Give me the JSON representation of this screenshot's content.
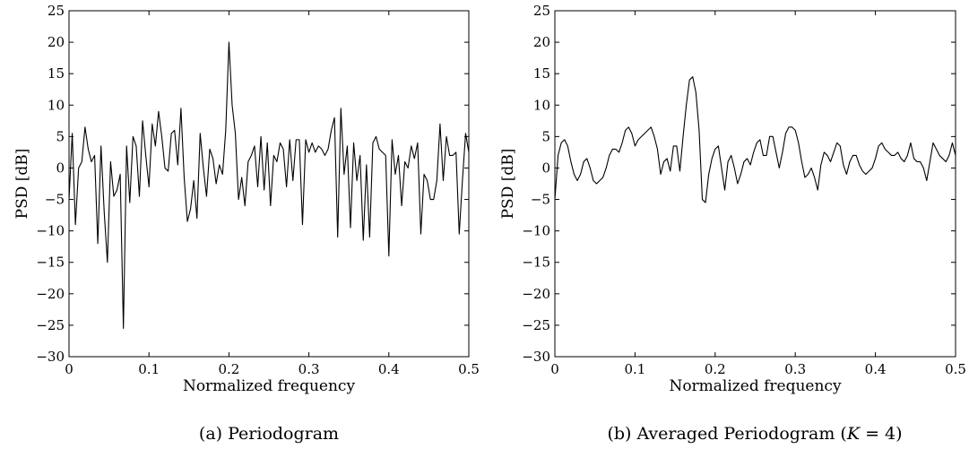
{
  "chart_data": [
    {
      "type": "line",
      "caption": "(a) Periodogram",
      "xlabel": "Normalized frequency",
      "ylabel": "PSD [dB]",
      "xlim": [
        0,
        0.5
      ],
      "ylim": [
        -30,
        25
      ],
      "xticks": [
        0,
        0.1,
        0.2,
        0.3,
        0.4,
        0.5
      ],
      "xtick_labels": [
        "0",
        "0.1",
        "0.2",
        "0.3",
        "0.4",
        "0.5"
      ],
      "yticks": [
        25,
        20,
        15,
        10,
        5,
        0,
        -5,
        -10,
        -15,
        -20,
        -25,
        -30
      ],
      "ytick_labels": [
        "25",
        "20",
        "15",
        "10",
        "5",
        "0",
        "−5",
        "−10",
        "−15",
        "−20",
        "−25",
        "−30"
      ],
      "grid": false,
      "series": [
        {
          "x": [
            0,
            0.004,
            0.008,
            0.012,
            0.016,
            0.02,
            0.024,
            0.028,
            0.032,
            0.036,
            0.04,
            0.044,
            0.048,
            0.052,
            0.056,
            0.06,
            0.064,
            0.068,
            0.072,
            0.076,
            0.08,
            0.084,
            0.088,
            0.092,
            0.096,
            0.1,
            0.104,
            0.108,
            0.112,
            0.116,
            0.12,
            0.124,
            0.128,
            0.132,
            0.136,
            0.14,
            0.144,
            0.148,
            0.152,
            0.156,
            0.16,
            0.164,
            0.168,
            0.172,
            0.176,
            0.18,
            0.184,
            0.188,
            0.192,
            0.196,
            0.2,
            0.204,
            0.208,
            0.212,
            0.216,
            0.22,
            0.224,
            0.228,
            0.232,
            0.236,
            0.24,
            0.244,
            0.248,
            0.252,
            0.256,
            0.26,
            0.264,
            0.268,
            0.272,
            0.276,
            0.28,
            0.284,
            0.288,
            0.292,
            0.296,
            0.3,
            0.304,
            0.308,
            0.312,
            0.316,
            0.32,
            0.324,
            0.328,
            0.332,
            0.336,
            0.34,
            0.344,
            0.348,
            0.352,
            0.356,
            0.36,
            0.364,
            0.368,
            0.372,
            0.376,
            0.38,
            0.384,
            0.388,
            0.392,
            0.396,
            0.4,
            0.404,
            0.408,
            0.412,
            0.416,
            0.42,
            0.424,
            0.428,
            0.432,
            0.436,
            0.44,
            0.444,
            0.448,
            0.452,
            0.456,
            0.46,
            0.464,
            0.468,
            0.472,
            0.476,
            0.48,
            0.484,
            0.488,
            0.492,
            0.496,
            0.5
          ],
          "values": [
            -5,
            5.5,
            -9,
            0,
            1,
            6.5,
            3,
            1,
            2,
            -12,
            3.5,
            -7,
            -15,
            1,
            -4.5,
            -3.5,
            -1,
            -25.5,
            3.5,
            -5.5,
            5,
            3.5,
            -4.5,
            7.5,
            2,
            -3,
            7,
            3.5,
            9,
            5,
            0,
            -0.5,
            5.5,
            6,
            0.5,
            9.5,
            -1.5,
            -8.5,
            -6.5,
            -2,
            -8,
            5.5,
            0,
            -4.5,
            3,
            1.5,
            -2.5,
            0.5,
            -1,
            6,
            20,
            10,
            5.5,
            -5,
            -1.5,
            -6,
            1,
            2,
            3.5,
            -3,
            5,
            -3.5,
            4,
            -6,
            2,
            1,
            4,
            3,
            -3,
            4.5,
            -2,
            4.5,
            4.5,
            -9,
            4.5,
            2.5,
            4,
            2.5,
            3.5,
            3,
            2,
            3,
            6,
            8,
            -11,
            9.5,
            -1,
            3.5,
            -9.5,
            4,
            -2,
            2,
            -11.5,
            0.5,
            -11,
            4,
            5,
            3,
            2.5,
            2,
            -14,
            4.5,
            -1,
            2,
            -6,
            1,
            0,
            3.5,
            1.5,
            4,
            -10.5,
            -1,
            -2,
            -5,
            -5,
            -2,
            7,
            -2,
            5,
            2,
            2,
            2.5,
            -10.5,
            -2,
            5.5,
            2.5
          ]
        }
      ]
    },
    {
      "type": "line",
      "caption": "(b) Averaged Periodogram (K = 4)",
      "caption_main": "(b) Averaged Periodogram (",
      "caption_var": "K",
      "caption_rest": " = 4)",
      "xlabel": "Normalized frequency",
      "ylabel": "PSD [dB]",
      "xlim": [
        0,
        0.5
      ],
      "ylim": [
        -30,
        25
      ],
      "xticks": [
        0,
        0.1,
        0.2,
        0.3,
        0.4,
        0.5
      ],
      "xtick_labels": [
        "0",
        "0.1",
        "0.2",
        "0.3",
        "0.4",
        "0.5"
      ],
      "yticks": [
        25,
        20,
        15,
        10,
        5,
        0,
        -5,
        -10,
        -15,
        -20,
        -25,
        -30
      ],
      "ytick_labels": [
        "25",
        "20",
        "15",
        "10",
        "5",
        "0",
        "−5",
        "−10",
        "−15",
        "−20",
        "−25",
        "−30"
      ],
      "grid": false,
      "series": [
        {
          "x": [
            0,
            0.004,
            0.008,
            0.012,
            0.016,
            0.02,
            0.024,
            0.028,
            0.032,
            0.036,
            0.04,
            0.044,
            0.048,
            0.052,
            0.056,
            0.06,
            0.064,
            0.068,
            0.072,
            0.076,
            0.08,
            0.084,
            0.088,
            0.092,
            0.096,
            0.1,
            0.104,
            0.108,
            0.112,
            0.116,
            0.12,
            0.124,
            0.128,
            0.132,
            0.136,
            0.14,
            0.144,
            0.148,
            0.152,
            0.156,
            0.16,
            0.164,
            0.168,
            0.172,
            0.176,
            0.18,
            0.184,
            0.188,
            0.192,
            0.196,
            0.2,
            0.204,
            0.208,
            0.212,
            0.216,
            0.22,
            0.224,
            0.228,
            0.232,
            0.236,
            0.24,
            0.244,
            0.248,
            0.252,
            0.256,
            0.26,
            0.264,
            0.268,
            0.272,
            0.276,
            0.28,
            0.284,
            0.288,
            0.292,
            0.296,
            0.3,
            0.304,
            0.308,
            0.312,
            0.316,
            0.32,
            0.324,
            0.328,
            0.332,
            0.336,
            0.34,
            0.344,
            0.348,
            0.352,
            0.356,
            0.36,
            0.364,
            0.368,
            0.372,
            0.376,
            0.38,
            0.384,
            0.388,
            0.392,
            0.396,
            0.4,
            0.404,
            0.408,
            0.412,
            0.416,
            0.42,
            0.424,
            0.428,
            0.432,
            0.436,
            0.44,
            0.444,
            0.448,
            0.452,
            0.456,
            0.46,
            0.464,
            0.468,
            0.472,
            0.476,
            0.48,
            0.484,
            0.488,
            0.492,
            0.496,
            0.5
          ],
          "values": [
            -5,
            2,
            4,
            4.5,
            3.5,
            1,
            -1,
            -2,
            -1,
            1,
            1.5,
            0,
            -2,
            -2.5,
            -2,
            -1.5,
            0,
            2,
            3,
            3,
            2.5,
            4,
            6,
            6.5,
            5.5,
            3.5,
            4.5,
            5,
            5.5,
            6,
            6.5,
            5,
            3,
            -1,
            1,
            1.5,
            -0.5,
            3.5,
            3.5,
            -0.5,
            5,
            10,
            14,
            14.5,
            12,
            6,
            -5,
            -5.5,
            -1,
            1.5,
            3,
            3.5,
            0,
            -3.5,
            1,
            2,
            0,
            -2.5,
            -1,
            1,
            1.5,
            0.5,
            2.5,
            4,
            4.5,
            2,
            2,
            5,
            5,
            2.5,
            0,
            2.5,
            5.5,
            6.5,
            6.5,
            6,
            4,
            1,
            -1.5,
            -1,
            0,
            -1.5,
            -3.5,
            0.5,
            2.5,
            2,
            1,
            2.5,
            4,
            3.5,
            0.5,
            -1,
            1,
            2,
            2,
            0.5,
            -0.5,
            -1,
            -0.5,
            0,
            1.5,
            3.5,
            4,
            3,
            2.5,
            2,
            2,
            2.5,
            1.5,
            1,
            2,
            4,
            1.5,
            1,
            1,
            0,
            -2,
            1,
            4,
            3,
            2,
            1.5,
            1,
            2,
            4,
            2
          ]
        }
      ]
    }
  ]
}
